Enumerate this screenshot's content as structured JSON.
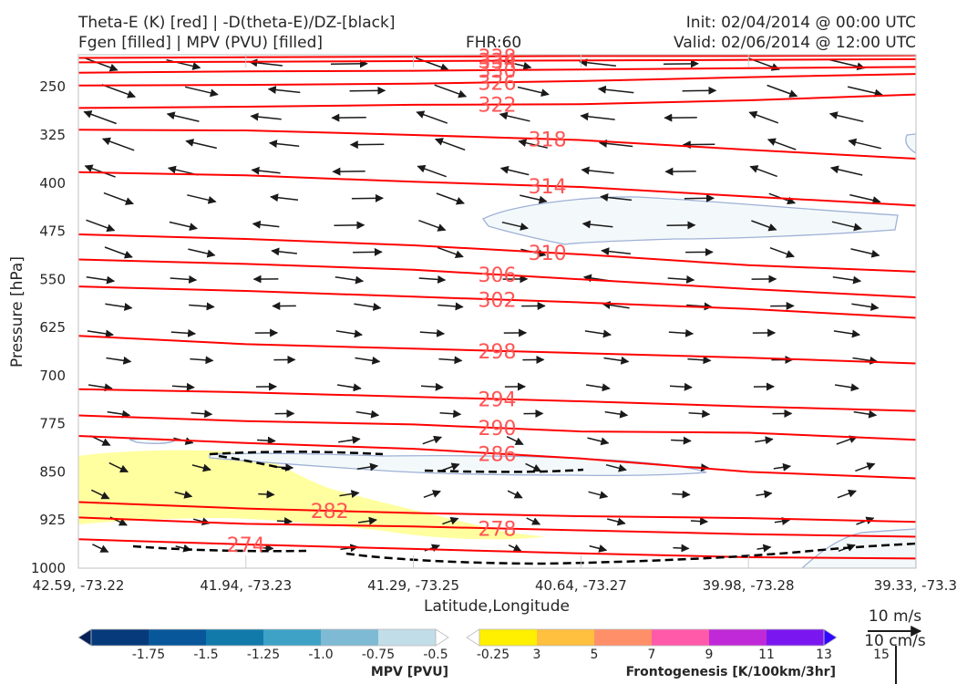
{
  "header": {
    "title_line1": "Theta-E (K) [red] | -D(theta-E)/DZ-[black]",
    "title_line2": "Fgen [filled] | MPV (PVU) [filled]",
    "fhr": "FHR:60",
    "init": "Init: 02/04/2014 @ 00:00 UTC",
    "valid": "Valid: 02/06/2014 @ 12:00 UTC"
  },
  "chart_data": {
    "type": "cross-section",
    "xlabel": "Latitude,Longitude",
    "ylabel": "Pressure [hPa]",
    "ylim": [
      1000,
      200
    ],
    "x_ticks": [
      "42.59, -73.22",
      "41.94, -73.23",
      "41.29, -73.25",
      "40.64, -73.27",
      "39.98, -73.28",
      "39.33, -73.3"
    ],
    "y_ticks": [
      250,
      325,
      400,
      475,
      550,
      625,
      700,
      775,
      850,
      925,
      1000
    ],
    "theta_e_contours": [
      {
        "label": "338",
        "y": [
          205,
          204,
          203,
          202,
          202,
          201
        ]
      },
      {
        "label": "334",
        "y": [
          212,
          211,
          210,
          209,
          208,
          207
        ]
      },
      {
        "label": "330",
        "y": [
          228,
          226,
          225,
          223,
          221,
          219
        ]
      },
      {
        "label": "326",
        "y": [
          248,
          247,
          245,
          241,
          235,
          230
        ]
      },
      {
        "label": "322",
        "y": [
          283,
          281,
          278,
          277,
          271,
          262
        ]
      },
      {
        "label": "318",
        "y": [
          317,
          318,
          325,
          333,
          348,
          362
        ]
      },
      {
        "label": "314",
        "y": [
          383,
          388,
          398,
          406,
          421,
          435
        ]
      },
      {
        "label": "310",
        "y": [
          480,
          487,
          497,
          511,
          528,
          538
        ]
      },
      {
        "label": "306",
        "y": [
          519,
          526,
          535,
          550,
          565,
          578
        ]
      },
      {
        "label": "302",
        "y": [
          561,
          568,
          577,
          586,
          596,
          610
        ]
      },
      {
        "label": "298",
        "y": [
          638,
          651,
          658,
          665,
          672,
          681
        ]
      },
      {
        "label": "294",
        "y": [
          721,
          726,
          733,
          740,
          748,
          755
        ]
      },
      {
        "label": "290",
        "y": [
          762,
          771,
          776,
          787,
          789,
          800
        ]
      },
      {
        "label": "286",
        "y": [
          794,
          805,
          814,
          829,
          850,
          860
        ]
      },
      {
        "label": "282",
        "y": [
          897,
          907,
          914,
          919,
          922,
          928
        ]
      },
      {
        "label": "278",
        "y": [
          921,
          931,
          935,
          941,
          947,
          951
        ]
      },
      {
        "label": "274",
        "y": [
          955,
          963,
          970,
          977,
          983,
          985
        ]
      }
    ],
    "contour_label_color": "#ff5555",
    "theta_e_color": "#ff0000",
    "stability_color": "#000000",
    "mpv_colorbar": {
      "title": "MPV [PVU]",
      "ticks": [
        "-1.75",
        "-1.5",
        "-1.25",
        "-1.0",
        "-0.75",
        "-0.5",
        "-0.25"
      ],
      "colors": [
        "#03205a",
        "#063a7a",
        "#08579a",
        "#127aab",
        "#3ea2c7",
        "#7ebad3",
        "#c1dde8",
        "#ffffff"
      ]
    },
    "fgen_colorbar": {
      "title": "Frontogenesis [K/100km/3hr]",
      "ticks": [
        "3",
        "5",
        "7",
        "9",
        "11",
        "13",
        "15"
      ],
      "colors": [
        "#ffffff",
        "#fff000",
        "#ffbf3f",
        "#ff8f68",
        "#ff5aa9",
        "#c029d7",
        "#7a17f0",
        "#3208ff"
      ]
    },
    "reference_vector": {
      "horizontal": "10 m/s",
      "vertical": "10 cm/s"
    }
  }
}
